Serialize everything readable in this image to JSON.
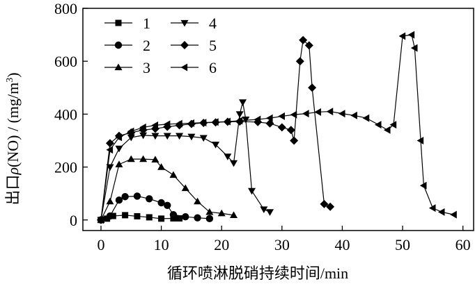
{
  "chart_data": {
    "type": "line",
    "title": "",
    "xlabel": "循环喷淋脱硝持续时间/min",
    "ylabel_parts": [
      "出口",
      "ρ",
      "(NO) / (mg/m",
      "3",
      ")"
    ],
    "xlim": [
      -3,
      62
    ],
    "ylim": [
      -40,
      800
    ],
    "x_ticks": [
      0,
      10,
      20,
      30,
      40,
      50,
      60
    ],
    "y_ticks": [
      0,
      200,
      400,
      600,
      800
    ],
    "grid": false,
    "legend_position": "top-left",
    "series": [
      {
        "name": "1",
        "marker": "square",
        "points": [
          [
            0,
            0
          ],
          [
            1,
            5
          ],
          [
            2,
            15
          ],
          [
            4,
            18
          ],
          [
            6,
            14
          ],
          [
            8,
            10
          ],
          [
            10,
            5
          ],
          [
            12,
            6
          ],
          [
            13,
            6
          ]
        ]
      },
      {
        "name": "2",
        "marker": "circle",
        "points": [
          [
            0,
            0
          ],
          [
            1.5,
            15
          ],
          [
            3,
            75
          ],
          [
            4,
            88
          ],
          [
            6,
            90
          ],
          [
            8,
            80
          ],
          [
            10,
            65
          ],
          [
            11,
            55
          ],
          [
            12,
            20
          ],
          [
            14,
            12
          ],
          [
            16,
            8
          ],
          [
            18,
            5
          ]
        ]
      },
      {
        "name": "3",
        "marker": "triangle-up",
        "points": [
          [
            0,
            0
          ],
          [
            1.5,
            70
          ],
          [
            3,
            210
          ],
          [
            5,
            230
          ],
          [
            7,
            230
          ],
          [
            9,
            228
          ],
          [
            10,
            200
          ],
          [
            12,
            170
          ],
          [
            14,
            120
          ],
          [
            16,
            70
          ],
          [
            18,
            30
          ],
          [
            20,
            25
          ],
          [
            22,
            18
          ]
        ]
      },
      {
        "name": "4",
        "marker": "triangle-down",
        "points": [
          [
            0,
            0
          ],
          [
            1.5,
            200
          ],
          [
            3,
            270
          ],
          [
            5,
            312
          ],
          [
            7,
            320
          ],
          [
            9,
            318
          ],
          [
            11,
            318
          ],
          [
            13,
            318
          ],
          [
            15,
            315
          ],
          [
            17,
            310
          ],
          [
            19,
            285
          ],
          [
            21,
            240
          ],
          [
            22,
            215
          ],
          [
            23,
            400
          ],
          [
            23.5,
            445
          ],
          [
            24,
            380
          ],
          [
            25,
            110
          ],
          [
            27,
            40
          ],
          [
            28,
            30
          ]
        ]
      },
      {
        "name": "5",
        "marker": "diamond",
        "points": [
          [
            0,
            0
          ],
          [
            1.5,
            290
          ],
          [
            3,
            318
          ],
          [
            5,
            330
          ],
          [
            7,
            340
          ],
          [
            9,
            345
          ],
          [
            11,
            352
          ],
          [
            13,
            358
          ],
          [
            15,
            363
          ],
          [
            17,
            367
          ],
          [
            19,
            369
          ],
          [
            21,
            371
          ],
          [
            23,
            372
          ],
          [
            26,
            370
          ],
          [
            28,
            365
          ],
          [
            30,
            350
          ],
          [
            31.5,
            340
          ],
          [
            32,
            300
          ],
          [
            33,
            600
          ],
          [
            33.5,
            680
          ],
          [
            34.5,
            660
          ],
          [
            35,
            500
          ],
          [
            37,
            60
          ],
          [
            38,
            50
          ]
        ]
      },
      {
        "name": "6",
        "marker": "triangle-left",
        "points": [
          [
            0,
            0
          ],
          [
            1.5,
            265
          ],
          [
            3,
            312
          ],
          [
            5,
            335
          ],
          [
            7,
            350
          ],
          [
            9,
            358
          ],
          [
            11,
            362
          ],
          [
            13,
            364
          ],
          [
            15,
            366
          ],
          [
            17,
            368
          ],
          [
            19,
            370
          ],
          [
            21,
            372
          ],
          [
            23,
            375
          ],
          [
            26,
            380
          ],
          [
            28,
            385
          ],
          [
            30,
            392
          ],
          [
            32,
            398
          ],
          [
            34,
            402
          ],
          [
            36,
            408
          ],
          [
            38,
            410
          ],
          [
            40,
            402
          ],
          [
            42,
            395
          ],
          [
            44,
            385
          ],
          [
            46,
            360
          ],
          [
            47.5,
            340
          ],
          [
            48.5,
            360
          ],
          [
            50,
            695
          ],
          [
            51.5,
            700
          ],
          [
            52,
            650
          ],
          [
            53,
            300
          ],
          [
            53.5,
            130
          ],
          [
            55,
            45
          ],
          [
            56.5,
            30
          ],
          [
            58.5,
            20
          ]
        ]
      }
    ]
  }
}
